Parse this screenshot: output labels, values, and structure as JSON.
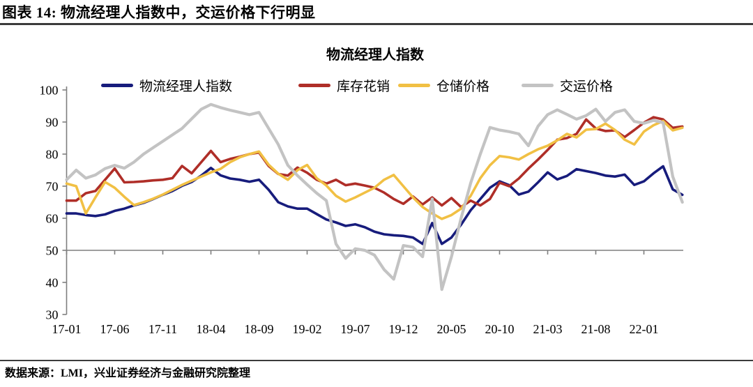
{
  "header": {
    "title": "图表 14:  物流经理人指数中，交运价格下行明显"
  },
  "footer": {
    "source": "数据来源：LMI，兴业证券经济与金融研究院整理"
  },
  "colors": {
    "blue": "#171C7C",
    "red": "#AF2E28",
    "yellow": "#F1C044",
    "gray": "#C3C3C3",
    "axis": "#7f7f7f"
  },
  "chart_data": {
    "type": "line",
    "title": "物流经理人指数",
    "xlabel": "",
    "ylabel": "",
    "ylim": [
      30,
      100
    ],
    "yticks": [
      30,
      40,
      50,
      60,
      70,
      80,
      90,
      100
    ],
    "axis_cross_y": 50,
    "grid": false,
    "legend_position": "top",
    "xtick_every": 5,
    "xtick_labels": [
      "17-01",
      "17-06",
      "17-11",
      "18-04",
      "18-09",
      "19-02",
      "19-07",
      "19-12",
      "20-05",
      "20-10",
      "21-03",
      "21-08",
      "22-01"
    ],
    "x": [
      "17-01",
      "17-02",
      "17-03",
      "17-04",
      "17-05",
      "17-06",
      "17-07",
      "17-08",
      "17-09",
      "17-10",
      "17-11",
      "17-12",
      "18-01",
      "18-02",
      "18-03",
      "18-04",
      "18-05",
      "18-06",
      "18-07",
      "18-08",
      "18-09",
      "18-10",
      "18-11",
      "18-12",
      "19-01",
      "19-02",
      "19-03",
      "19-04",
      "19-05",
      "19-06",
      "19-07",
      "19-08",
      "19-09",
      "19-10",
      "19-11",
      "19-12",
      "20-01",
      "20-02",
      "20-03",
      "20-04",
      "20-05",
      "20-06",
      "20-07",
      "20-08",
      "20-09",
      "20-10",
      "20-11",
      "20-12",
      "21-01",
      "21-02",
      "21-03",
      "21-04",
      "21-05",
      "21-06",
      "21-07",
      "21-08",
      "21-09",
      "21-10",
      "21-11",
      "21-12",
      "22-01",
      "22-02",
      "22-03",
      "22-04",
      "22-05"
    ],
    "series": [
      {
        "name": "物流经理人指数",
        "color": "#171C7C",
        "values": [
          61.5,
          61.5,
          61.0,
          60.7,
          61.2,
          62.3,
          63.0,
          64.0,
          64.8,
          66.0,
          67.3,
          68.5,
          70.1,
          71.3,
          73.3,
          75.7,
          73.4,
          72.4,
          72.0,
          71.4,
          72.0,
          68.9,
          65.0,
          63.7,
          63.0,
          63.0,
          61.3,
          59.6,
          58.7,
          57.6,
          58.1,
          57.2,
          55.8,
          55.0,
          54.7,
          54.5,
          54.0,
          52.0,
          58.5,
          52.0,
          54.0,
          58.0,
          62.5,
          66.0,
          69.5,
          71.5,
          70.3,
          67.4,
          68.3,
          71.2,
          74.3,
          72.1,
          73.2,
          75.3,
          74.7,
          74.1,
          73.3,
          73.0,
          73.6,
          70.4,
          71.5,
          74.0,
          76.2,
          69.0,
          67.3
        ]
      },
      {
        "name": "库存花销",
        "color": "#AF2E28",
        "values": [
          65.5,
          65.5,
          67.8,
          68.5,
          72.0,
          75.5,
          71.2,
          71.3,
          71.5,
          71.8,
          72.0,
          72.5,
          76.3,
          74.0,
          77.5,
          81.0,
          77.5,
          78.5,
          79.2,
          80.0,
          80.5,
          76.3,
          73.8,
          73.3,
          75.8,
          74.2,
          72.0,
          70.8,
          72.0,
          70.3,
          70.8,
          70.2,
          69.5,
          68.0,
          66.0,
          64.5,
          66.8,
          64.3,
          66.5,
          64.0,
          66.3,
          63.5,
          65.5,
          64.0,
          66.0,
          71.1,
          70.0,
          72.4,
          75.5,
          78.3,
          81.3,
          84.5,
          85.0,
          86.3,
          90.8,
          88.0,
          87.2,
          87.4,
          85.3,
          87.5,
          89.8,
          91.5,
          90.8,
          88.2,
          88.6
        ]
      },
      {
        "name": "仓储价格",
        "color": "#F1C044",
        "values": [
          70.8,
          70.0,
          61.5,
          66.5,
          71.3,
          69.5,
          66.7,
          64.1,
          65.0,
          66.1,
          67.4,
          68.9,
          70.4,
          71.7,
          73.0,
          74.3,
          75.4,
          77.5,
          79.0,
          80.0,
          80.8,
          76.7,
          73.9,
          72.0,
          75.0,
          76.6,
          72.5,
          70.2,
          67.0,
          65.2,
          66.5,
          68.0,
          69.5,
          72.0,
          73.5,
          70.0,
          66.5,
          63.5,
          61.5,
          59.8,
          61.0,
          63.0,
          67.0,
          72.5,
          76.5,
          79.4,
          79.0,
          78.3,
          80.0,
          81.5,
          82.6,
          84.3,
          86.3,
          85.2,
          87.6,
          87.8,
          89.5,
          87.5,
          84.5,
          83.0,
          87.0,
          89.0,
          90.3,
          87.4,
          88.2
        ]
      },
      {
        "name": "交运价格",
        "color": "#C3C3C3",
        "values": [
          72.0,
          75.0,
          72.5,
          73.5,
          75.5,
          76.5,
          75.6,
          77.5,
          80.0,
          82.0,
          84.0,
          86.0,
          88.0,
          91.0,
          94.0,
          95.5,
          94.5,
          93.7,
          93.0,
          92.3,
          93.0,
          88.0,
          83.0,
          76.5,
          73.3,
          70.5,
          67.8,
          65.5,
          52.0,
          47.5,
          50.5,
          50.0,
          48.5,
          44.0,
          41.0,
          51.5,
          51.0,
          48.0,
          66.0,
          37.8,
          48.0,
          60.0,
          71.0,
          80.0,
          88.3,
          87.5,
          87.0,
          86.3,
          82.6,
          88.7,
          92.3,
          93.8,
          92.4,
          90.9,
          92.0,
          94.0,
          90.2,
          93.0,
          93.8,
          90.2,
          89.6,
          90.5,
          89.8,
          73.0,
          65.0
        ]
      }
    ]
  }
}
